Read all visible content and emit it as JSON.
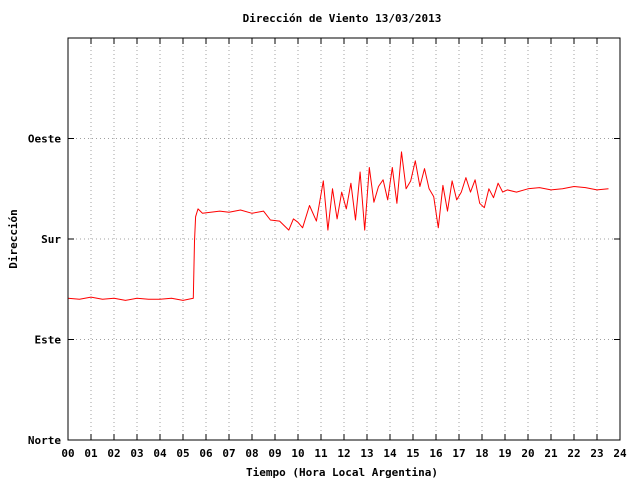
{
  "chart_data": {
    "type": "line",
    "title": "Dirección de Viento 13/03/2013",
    "xlabel": "Tiempo (Hora Local Argentina)",
    "ylabel": "Dirección",
    "xlim": [
      0,
      24
    ],
    "ylim": [
      0,
      360
    ],
    "grid": true,
    "x_ticks": [
      "00",
      "01",
      "02",
      "03",
      "04",
      "05",
      "06",
      "07",
      "08",
      "09",
      "10",
      "11",
      "12",
      "13",
      "14",
      "15",
      "16",
      "17",
      "18",
      "19",
      "20",
      "21",
      "22",
      "23",
      "24"
    ],
    "y_ticks": [
      {
        "value": 0,
        "label": "Norte"
      },
      {
        "value": 90,
        "label": "Este"
      },
      {
        "value": 180,
        "label": "Sur"
      },
      {
        "value": 270,
        "label": "Oeste"
      }
    ],
    "series": [
      {
        "color": "#ff0000",
        "x": [
          0.0,
          0.5,
          1.0,
          1.5,
          2.0,
          2.5,
          3.0,
          3.5,
          4.0,
          4.5,
          5.0,
          5.45,
          5.5,
          5.55,
          5.65,
          5.75,
          5.85,
          6.2,
          6.6,
          7.0,
          7.5,
          8.0,
          8.5,
          8.8,
          9.2,
          9.6,
          9.8,
          10.0,
          10.2,
          10.5,
          10.8,
          11.1,
          11.3,
          11.5,
          11.7,
          11.9,
          12.1,
          12.3,
          12.5,
          12.7,
          12.9,
          13.1,
          13.3,
          13.5,
          13.7,
          13.9,
          14.1,
          14.3,
          14.5,
          14.7,
          14.9,
          15.1,
          15.3,
          15.5,
          15.7,
          15.9,
          16.1,
          16.3,
          16.5,
          16.7,
          16.9,
          17.1,
          17.3,
          17.5,
          17.7,
          17.9,
          18.1,
          18.3,
          18.5,
          18.7,
          18.9,
          19.1,
          19.5,
          20.0,
          20.5,
          21.0,
          21.5,
          22.0,
          22.5,
          23.0,
          23.5
        ],
        "y": [
          127,
          126,
          128,
          126,
          127,
          125,
          127,
          126,
          126,
          127,
          125,
          127,
          178,
          200,
          207,
          205,
          203,
          204,
          205,
          204,
          206,
          203,
          205,
          197,
          196,
          188,
          198,
          195,
          190,
          210,
          196,
          232,
          188,
          225,
          198,
          222,
          207,
          230,
          197,
          240,
          188,
          244,
          213,
          227,
          233,
          215,
          244,
          212,
          258,
          225,
          232,
          250,
          227,
          243,
          225,
          218,
          190,
          228,
          205,
          232,
          215,
          222,
          235,
          222,
          233,
          212,
          208,
          225,
          217,
          230,
          222,
          224,
          222,
          225,
          226,
          224,
          225,
          227,
          226,
          224,
          225
        ]
      }
    ]
  }
}
